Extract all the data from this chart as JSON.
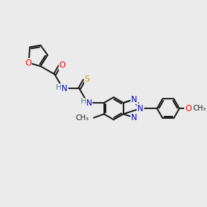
{
  "background_color": "#EBEBEB",
  "bond_color": "#1a1a1a",
  "atom_colors": {
    "O": "#FF0000",
    "N": "#0000CC",
    "S": "#CC9900",
    "H": "#2F7F7F",
    "C": "#1a1a1a"
  },
  "lw": 1.5
}
